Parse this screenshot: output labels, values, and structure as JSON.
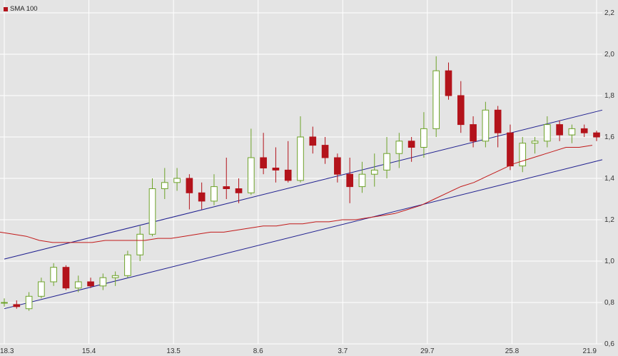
{
  "legend": {
    "sma_label": "SMA 100"
  },
  "colors": {
    "background": "#e4e4e4",
    "grid": "#ffffff",
    "candle_up_fill": "#ffffff",
    "candle_up_stroke": "#6ea32a",
    "candle_down": "#b3131b",
    "sma": "#c21a1a",
    "trend_lines": "#1f1f8f"
  },
  "chart_data": {
    "type": "candlestick",
    "title": "",
    "xlabel": "",
    "ylabel": "",
    "ylim": [
      0.6,
      2.2
    ],
    "y_ticks": [
      "0,6",
      "0,8",
      "1,0",
      "1,2",
      "1,4",
      "1,6",
      "1,8",
      "2,0",
      "2,2"
    ],
    "y_tick_values": [
      0.6,
      0.8,
      1.0,
      1.2,
      1.4,
      1.6,
      1.8,
      2.0,
      2.2
    ],
    "x_ticks": [
      "18.3",
      "15.4",
      "13.5",
      "8.6",
      "3.7",
      "29.7",
      "25.8",
      "21.9"
    ],
    "grid": true,
    "legend_position": "top-left",
    "series": [
      {
        "name": "SMA 100",
        "type": "line",
        "values": [
          1.14,
          1.13,
          1.12,
          1.1,
          1.09,
          1.09,
          1.09,
          1.09,
          1.1,
          1.1,
          1.1,
          1.1,
          1.11,
          1.11,
          1.12,
          1.13,
          1.14,
          1.14,
          1.15,
          1.16,
          1.17,
          1.17,
          1.18,
          1.18,
          1.19,
          1.19,
          1.2,
          1.2,
          1.21,
          1.22,
          1.23,
          1.25,
          1.27,
          1.3,
          1.33,
          1.36,
          1.38,
          1.41,
          1.44,
          1.47,
          1.49,
          1.51,
          1.53,
          1.55,
          1.55,
          1.56
        ]
      }
    ],
    "trend_lines": [
      {
        "from": [
          0,
          0.77
        ],
        "to": [
          50,
          1.49
        ]
      },
      {
        "from": [
          0,
          1.01
        ],
        "to": [
          50,
          1.73
        ]
      }
    ],
    "ohlc": [
      [
        0.8,
        0.82,
        0.78,
        0.8
      ],
      [
        0.79,
        0.81,
        0.77,
        0.78
      ],
      [
        0.77,
        0.85,
        0.76,
        0.83
      ],
      [
        0.83,
        0.92,
        0.82,
        0.9
      ],
      [
        0.9,
        0.99,
        0.88,
        0.97
      ],
      [
        0.97,
        0.98,
        0.86,
        0.87
      ],
      [
        0.87,
        0.93,
        0.85,
        0.9
      ],
      [
        0.9,
        0.92,
        0.87,
        0.88
      ],
      [
        0.88,
        0.94,
        0.86,
        0.92
      ],
      [
        0.92,
        0.95,
        0.88,
        0.93
      ],
      [
        0.93,
        1.05,
        0.92,
        1.03
      ],
      [
        1.03,
        1.17,
        1.0,
        1.13
      ],
      [
        1.13,
        1.4,
        1.12,
        1.35
      ],
      [
        1.35,
        1.45,
        1.3,
        1.38
      ],
      [
        1.38,
        1.45,
        1.34,
        1.4
      ],
      [
        1.4,
        1.42,
        1.25,
        1.33
      ],
      [
        1.33,
        1.38,
        1.25,
        1.29
      ],
      [
        1.29,
        1.42,
        1.27,
        1.36
      ],
      [
        1.36,
        1.5,
        1.3,
        1.35
      ],
      [
        1.35,
        1.4,
        1.28,
        1.33
      ],
      [
        1.33,
        1.64,
        1.32,
        1.5
      ],
      [
        1.5,
        1.62,
        1.42,
        1.45
      ],
      [
        1.45,
        1.55,
        1.38,
        1.44
      ],
      [
        1.44,
        1.58,
        1.38,
        1.39
      ],
      [
        1.39,
        1.7,
        1.38,
        1.6
      ],
      [
        1.6,
        1.65,
        1.52,
        1.56
      ],
      [
        1.56,
        1.6,
        1.47,
        1.5
      ],
      [
        1.5,
        1.52,
        1.38,
        1.42
      ],
      [
        1.42,
        1.5,
        1.28,
        1.36
      ],
      [
        1.36,
        1.48,
        1.33,
        1.42
      ],
      [
        1.42,
        1.52,
        1.36,
        1.44
      ],
      [
        1.44,
        1.6,
        1.4,
        1.52
      ],
      [
        1.52,
        1.62,
        1.45,
        1.58
      ],
      [
        1.58,
        1.6,
        1.48,
        1.55
      ],
      [
        1.55,
        1.72,
        1.5,
        1.64
      ],
      [
        1.64,
        1.99,
        1.6,
        1.92
      ],
      [
        1.92,
        1.96,
        1.78,
        1.8
      ],
      [
        1.8,
        1.87,
        1.62,
        1.66
      ],
      [
        1.66,
        1.7,
        1.55,
        1.58
      ],
      [
        1.58,
        1.77,
        1.55,
        1.73
      ],
      [
        1.73,
        1.75,
        1.55,
        1.62
      ],
      [
        1.62,
        1.66,
        1.44,
        1.46
      ],
      [
        1.46,
        1.6,
        1.43,
        1.57
      ],
      [
        1.57,
        1.6,
        1.52,
        1.58
      ],
      [
        1.58,
        1.7,
        1.55,
        1.66
      ],
      [
        1.66,
        1.68,
        1.58,
        1.61
      ],
      [
        1.61,
        1.66,
        1.57,
        1.64
      ],
      [
        1.64,
        1.66,
        1.6,
        1.62
      ],
      [
        1.62,
        1.63,
        1.58,
        1.6
      ]
    ]
  }
}
